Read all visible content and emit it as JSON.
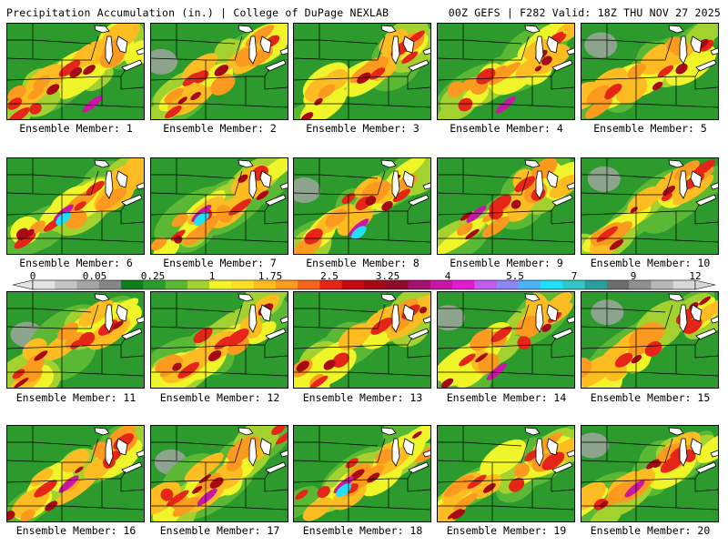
{
  "header": {
    "left": "Precipitation Accumulation (in.) | College of DuPage NEXLAB",
    "right": "00Z GEFS | F282 Valid: 18Z THU NOV 27 2025"
  },
  "colorbar": {
    "labels": [
      "0",
      "0.05",
      "0.25",
      "1",
      "1.75",
      "2.5",
      "3.25",
      "4",
      "5.5",
      "7",
      "9",
      "12"
    ],
    "colors": [
      "#e3e3e3",
      "#c4c4c4",
      "#a5a5a5",
      "#868686",
      "#0f7d1c",
      "#2c9a2c",
      "#5ab834",
      "#a3d230",
      "#f0f52a",
      "#fde025",
      "#fdbd22",
      "#fb9a1e",
      "#f7641a",
      "#e52517",
      "#c40913",
      "#a50a15",
      "#8e0b2a",
      "#a51070",
      "#c816a5",
      "#e41ad5",
      "#c35bf0",
      "#8a86f5",
      "#4bb2f8",
      "#1fe0f7",
      "#33c6c6",
      "#2a9f9f",
      "#6d6d6d",
      "#909090",
      "#b8b8b8",
      "#d8d8d8"
    ]
  },
  "members": [
    {
      "label": "Ensemble Member: 1"
    },
    {
      "label": "Ensemble Member: 2"
    },
    {
      "label": "Ensemble Member: 3"
    },
    {
      "label": "Ensemble Member: 4"
    },
    {
      "label": "Ensemble Member: 5"
    },
    {
      "label": "Ensemble Member: 6"
    },
    {
      "label": "Ensemble Member: 7"
    },
    {
      "label": "Ensemble Member: 8"
    },
    {
      "label": "Ensemble Member: 9"
    },
    {
      "label": "Ensemble Member: 10"
    },
    {
      "label": "Ensemble Member: 11"
    },
    {
      "label": "Ensemble Member: 12"
    },
    {
      "label": "Ensemble Member: 13"
    },
    {
      "label": "Ensemble Member: 14"
    },
    {
      "label": "Ensemble Member: 15"
    },
    {
      "label": "Ensemble Member: 16"
    },
    {
      "label": "Ensemble Member: 17"
    },
    {
      "label": "Ensemble Member: 18"
    },
    {
      "label": "Ensemble Member: 19"
    },
    {
      "label": "Ensemble Member: 20"
    }
  ]
}
